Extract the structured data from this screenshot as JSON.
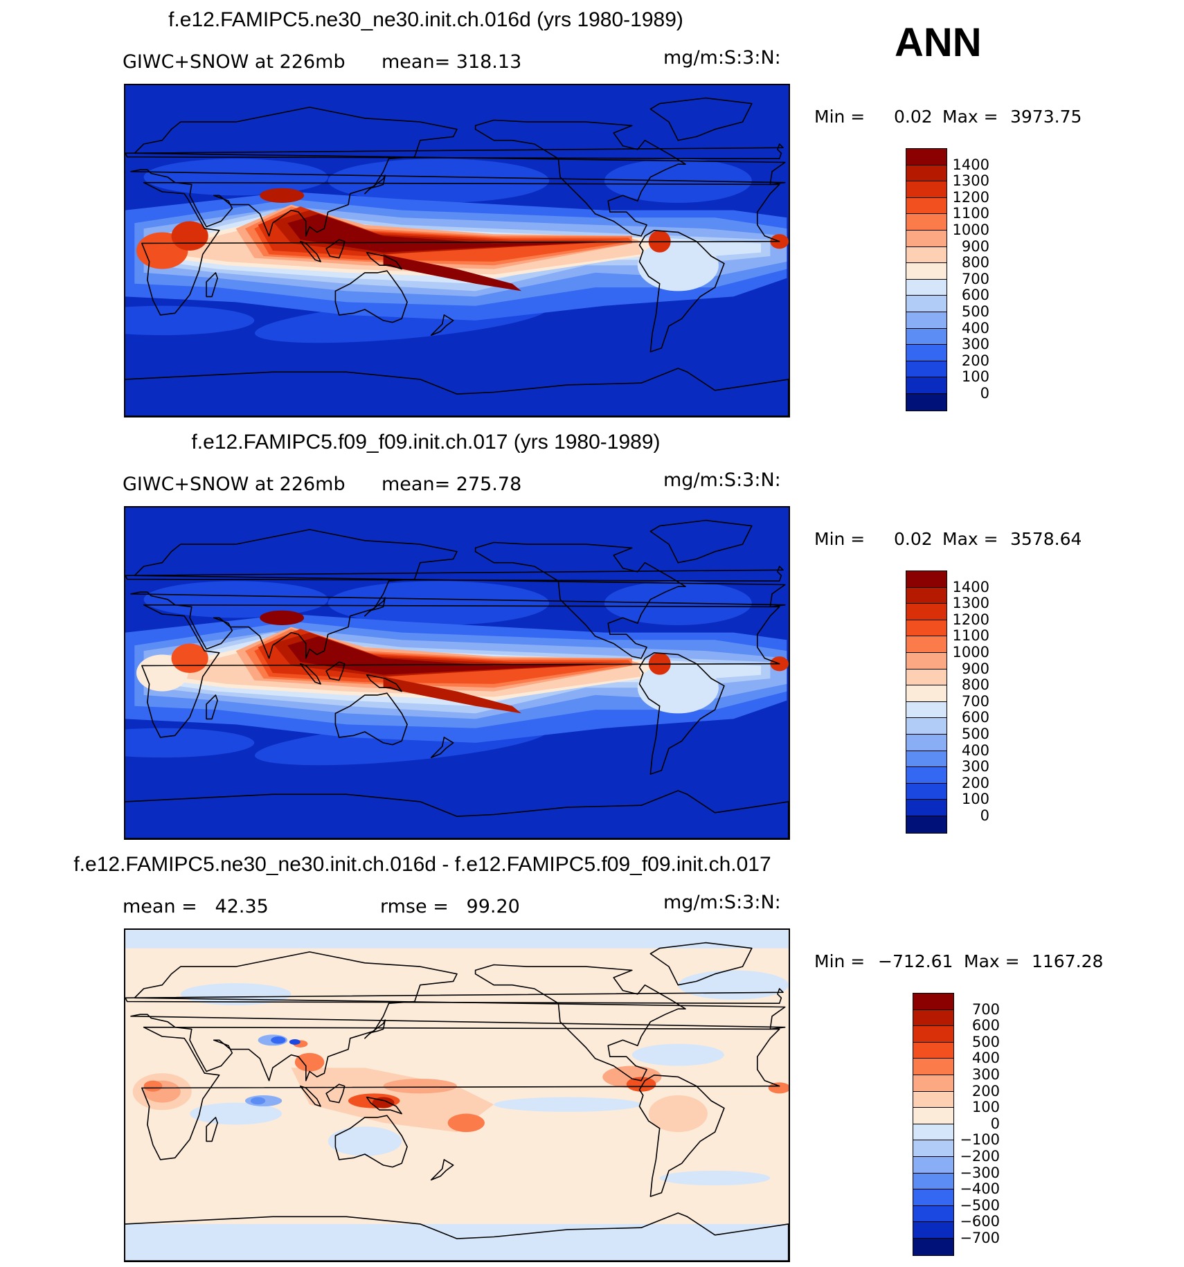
{
  "season_label": "ANN",
  "panels": [
    {
      "title": "f.e12.FAMIPC5.ne30_ne30.init.ch.016d (yrs 1980-1989)",
      "left_text": "GIWC+SNOW at 226mb",
      "center_text": "mean= 318.13",
      "units": "mg/m:S:3:N:",
      "min_label": "Min =",
      "min_value": "0.02",
      "max_label": "Max =",
      "max_value": "3973.75",
      "colorbar_labels": [
        "1400",
        "1300",
        "1200",
        "1100",
        "1000",
        "900",
        "800",
        "700",
        "600",
        "500",
        "400",
        "300",
        "200",
        "100",
        "0"
      ],
      "colorbar_colors": [
        "#8b0000",
        "#b51a00",
        "#d9300a",
        "#f2501e",
        "#fb7b4b",
        "#fca882",
        "#fdd0b3",
        "#fdebd9",
        "#d6e6fa",
        "#b0ccf7",
        "#89aef5",
        "#5c8df5",
        "#3468f2",
        "#1a48e0",
        "#0a2bbf",
        "#00127a"
      ]
    },
    {
      "title": "f.e12.FAMIPC5.f09_f09.init.ch.017 (yrs 1980-1989)",
      "left_text": "GIWC+SNOW at 226mb",
      "center_text": "mean= 275.78",
      "units": "mg/m:S:3:N:",
      "min_label": "Min =",
      "min_value": "0.02",
      "max_label": "Max =",
      "max_value": "3578.64",
      "colorbar_labels": [
        "1400",
        "1300",
        "1200",
        "1100",
        "1000",
        "900",
        "800",
        "700",
        "600",
        "500",
        "400",
        "300",
        "200",
        "100",
        "0"
      ],
      "colorbar_colors": [
        "#8b0000",
        "#b51a00",
        "#d9300a",
        "#f2501e",
        "#fb7b4b",
        "#fca882",
        "#fdd0b3",
        "#fdebd9",
        "#d6e6fa",
        "#b0ccf7",
        "#89aef5",
        "#5c8df5",
        "#3468f2",
        "#1a48e0",
        "#0a2bbf",
        "#00127a"
      ]
    },
    {
      "title": "f.e12.FAMIPC5.ne30_ne30.init.ch.016d - f.e12.FAMIPC5.f09_f09.init.ch.017",
      "left_text": "mean =   42.35",
      "center_text": "rmse =   99.20",
      "units": "mg/m:S:3:N:",
      "min_label": "Min =",
      "min_value": "−712.61",
      "max_label": "Max =",
      "max_value": "1167.28",
      "colorbar_labels": [
        "700",
        "600",
        "500",
        "400",
        "300",
        "200",
        "100",
        "0",
        "−100",
        "−200",
        "−300",
        "−400",
        "−500",
        "−600",
        "−700"
      ],
      "colorbar_colors": [
        "#8b0000",
        "#b51a00",
        "#d9300a",
        "#f2501e",
        "#fb7b4b",
        "#fca882",
        "#fdd0b3",
        "#fdebd9",
        "#d6e6fa",
        "#b0ccf7",
        "#89aef5",
        "#5c8df5",
        "#3468f2",
        "#1a48e0",
        "#0a2bbf",
        "#00127a"
      ]
    }
  ],
  "map_colors": {
    "ocean_low": "#0a2bbf",
    "diff_background": "#fdebd9",
    "diff_light_blue": "#d6e6fa",
    "coast": "#000000"
  }
}
